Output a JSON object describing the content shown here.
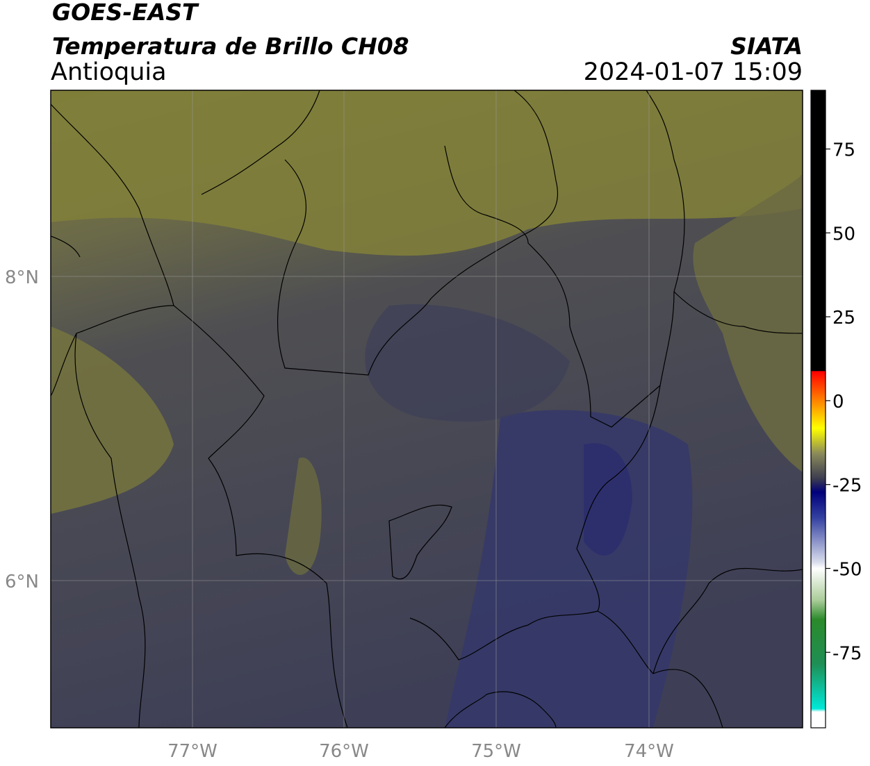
{
  "header": {
    "title": "GOES-EAST",
    "subtitle": "Temperatura de Brillo CH08",
    "region": "Antioquia",
    "source": "SIATA",
    "datetime": "2024-01-07 15:09"
  },
  "map": {
    "lon_labels": [
      "77°W",
      "76°W",
      "75°W",
      "74°W"
    ],
    "lat_labels": [
      "8°N",
      "6°N"
    ]
  },
  "colorbar": {
    "lim": [
      -97.5,
      92.5
    ],
    "ticks": [
      75,
      50,
      25,
      0,
      -25,
      -50,
      -75
    ]
  }
}
